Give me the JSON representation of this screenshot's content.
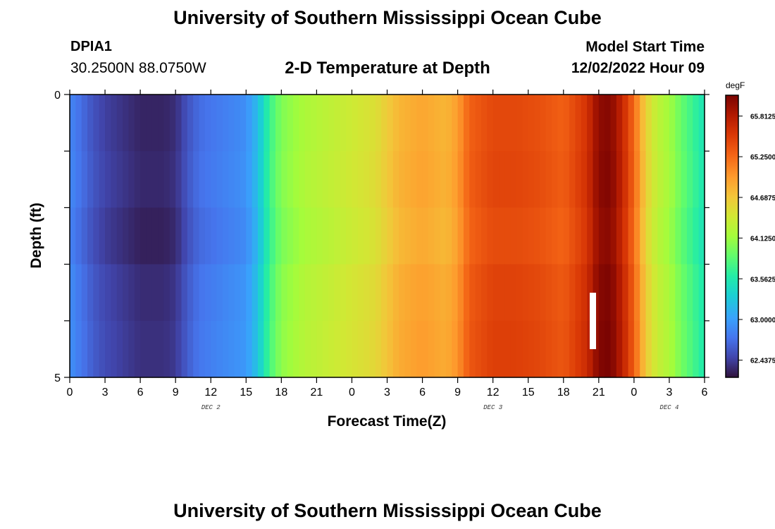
{
  "header": {
    "title": "University of Southern Mississippi Ocean Cube",
    "station_id": "DPIA1",
    "station_coords": "30.2500N  88.0750W",
    "subtitle": "2-D Temperature at Depth",
    "model_start_label": "Model Start Time",
    "model_start_value": "12/02/2022 Hour 09"
  },
  "footer": {
    "title": "University of Southern Mississippi Ocean Cube"
  },
  "chart_data": {
    "type": "heatmap",
    "title": "2-D Temperature at Depth",
    "xlabel": "Forecast Time(Z)",
    "ylabel": "Depth (ft)",
    "x_tick_labels": [
      "0",
      "3",
      "6",
      "9",
      "12",
      "15",
      "18",
      "21",
      "0",
      "3",
      "6",
      "9",
      "12",
      "15",
      "18",
      "21",
      "0",
      "3",
      "6"
    ],
    "date_labels": [
      {
        "label": "DEC 2",
        "at_tick": 4
      },
      {
        "label": "DEC 3",
        "at_tick": 12
      },
      {
        "label": "DEC 4",
        "at_tick": 17
      }
    ],
    "y_tick_labels": [
      "0",
      "5"
    ],
    "ylim": [
      0,
      5
    ],
    "x_hours": [
      0,
      54
    ],
    "depth_levels": 5,
    "colorbar": {
      "unit": "degF",
      "tick_labels": [
        "65.8125",
        "65.2500",
        "64.6875",
        "64.1250",
        "63.5625",
        "63.0000",
        "62.4375"
      ],
      "ticks": [
        65.8125,
        65.25,
        64.6875,
        64.125,
        63.5625,
        63.0,
        62.4375
      ],
      "range": [
        62.2,
        66.1
      ]
    },
    "temperature_profile": {
      "hours": [
        0,
        1,
        2,
        3,
        4,
        5,
        6,
        7,
        8,
        9,
        10,
        11,
        12,
        13,
        14,
        15,
        16,
        17,
        18,
        20,
        22,
        24,
        26,
        28,
        30,
        32,
        33,
        34,
        36,
        38,
        40,
        42,
        44,
        45,
        46,
        47,
        48,
        49,
        50,
        51,
        52,
        53,
        54
      ],
      "degF": [
        62.85,
        62.7,
        62.55,
        62.45,
        62.4,
        62.35,
        62.3,
        62.3,
        62.3,
        62.35,
        62.55,
        62.7,
        62.75,
        62.8,
        62.85,
        62.9,
        63.2,
        63.7,
        64.0,
        64.2,
        64.3,
        64.4,
        64.5,
        64.8,
        64.9,
        64.8,
        64.95,
        65.3,
        65.45,
        65.45,
        65.4,
        65.3,
        65.6,
        66.0,
        66.05,
        65.7,
        65.25,
        64.6,
        64.3,
        64.15,
        63.9,
        63.7,
        63.5
      ]
    },
    "depth_offsets_degF": [
      0.0,
      0.02,
      -0.02,
      0.04,
      0.06
    ],
    "grid": false
  }
}
